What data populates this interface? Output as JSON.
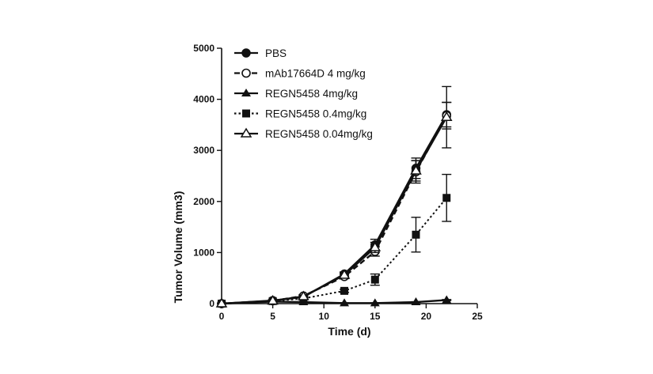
{
  "chart_data": {
    "type": "line",
    "title": "",
    "xlabel": "Time (d)",
    "ylabel": "Tumor Volume (mm3)",
    "xlim": [
      0,
      25
    ],
    "ylim": [
      0,
      5000
    ],
    "x_ticks": [
      0,
      5,
      10,
      15,
      20,
      25
    ],
    "y_ticks": [
      0,
      1000,
      2000,
      3000,
      4000,
      5000
    ],
    "x_tick_labels": [
      "0",
      "5",
      "10",
      "15",
      "20",
      "25"
    ],
    "y_tick_labels": [
      "0",
      "1000",
      "2000",
      "3000",
      "4000",
      "5000"
    ],
    "legend_position": "top-left",
    "grid": false,
    "series": [
      {
        "name": "PBS",
        "marker": "circle-filled",
        "line": "solid",
        "x": [
          0,
          5,
          8,
          12,
          15,
          19,
          22
        ],
        "y": [
          0,
          60,
          130,
          580,
          1150,
          2650,
          3700
        ],
        "err": [
          0,
          15,
          25,
          40,
          110,
          200,
          240
        ]
      },
      {
        "name": "mAb17664D 4 mg/kg",
        "marker": "circle-open",
        "line": "dashed",
        "x": [
          0,
          5,
          8,
          12,
          15,
          19,
          22
        ],
        "y": [
          0,
          55,
          150,
          530,
          1020,
          2580,
          3680
        ],
        "err": [
          0,
          15,
          25,
          40,
          90,
          220,
          260
        ]
      },
      {
        "name": "REGN5458 4mg/kg",
        "marker": "triangle-filled",
        "line": "solid",
        "x": [
          0,
          5,
          8,
          12,
          15,
          19,
          22
        ],
        "y": [
          0,
          40,
          30,
          10,
          10,
          30,
          70
        ],
        "err": [
          0,
          8,
          8,
          5,
          5,
          8,
          10
        ]
      },
      {
        "name": "REGN5458 0.4mg/kg",
        "marker": "square-filled",
        "line": "dotted",
        "x": [
          0,
          5,
          8,
          12,
          15,
          19,
          22
        ],
        "y": [
          0,
          50,
          100,
          250,
          470,
          1350,
          2070
        ],
        "err": [
          0,
          12,
          20,
          30,
          110,
          340,
          460
        ]
      },
      {
        "name": "REGN5458 0.04mg/kg",
        "marker": "triangle-open",
        "line": "solid",
        "x": [
          0,
          5,
          8,
          12,
          15,
          19,
          22
        ],
        "y": [
          0,
          55,
          140,
          560,
          1100,
          2600,
          3650
        ],
        "err": [
          0,
          15,
          25,
          40,
          100,
          200,
          600
        ]
      }
    ]
  }
}
